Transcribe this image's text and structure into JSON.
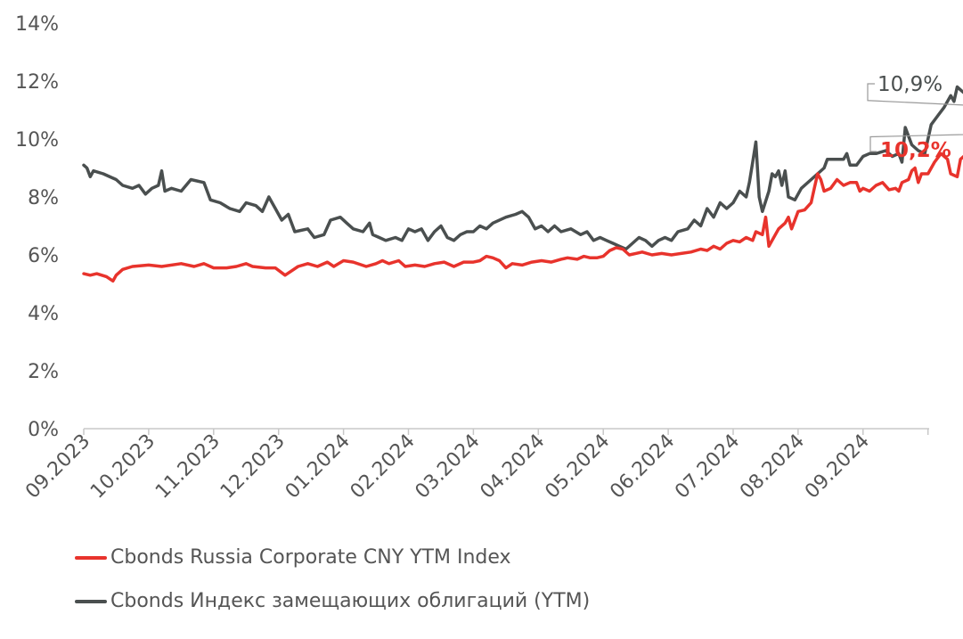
{
  "chart_data": {
    "type": "line",
    "title": "",
    "xlabel": "",
    "ylabel": "",
    "ylim": [
      0,
      14
    ],
    "y_ticks": [
      "0%",
      "2%",
      "4%",
      "6%",
      "8%",
      "10%",
      "12%",
      "14%"
    ],
    "y_tick_values": [
      0,
      2,
      4,
      6,
      8,
      10,
      12,
      14
    ],
    "x_ticks": [
      "09.2023",
      "10.2023",
      "11.2023",
      "12.2023",
      "01.2024",
      "02.2024",
      "03.2024",
      "04.2024",
      "05.2024",
      "06.2024",
      "07.2024",
      "08.2024",
      "09.2024"
    ],
    "x_range_months": [
      0,
      13
    ],
    "grid": false,
    "legend_position": "bottom-left",
    "series": [
      {
        "name": "Cbonds Russia Corporate CNY YTM Index",
        "color": "#e8332c",
        "end_label": "10,2%",
        "points": [
          [
            0.0,
            5.35
          ],
          [
            0.1,
            5.3
          ],
          [
            0.2,
            5.35
          ],
          [
            0.35,
            5.25
          ],
          [
            0.45,
            5.1
          ],
          [
            0.5,
            5.3
          ],
          [
            0.6,
            5.5
          ],
          [
            0.75,
            5.6
          ],
          [
            1.0,
            5.65
          ],
          [
            1.2,
            5.6
          ],
          [
            1.5,
            5.7
          ],
          [
            1.7,
            5.6
          ],
          [
            1.85,
            5.7
          ],
          [
            2.0,
            5.55
          ],
          [
            2.2,
            5.55
          ],
          [
            2.35,
            5.6
          ],
          [
            2.5,
            5.7
          ],
          [
            2.6,
            5.6
          ],
          [
            2.8,
            5.55
          ],
          [
            2.95,
            5.55
          ],
          [
            3.1,
            5.3
          ],
          [
            3.2,
            5.45
          ],
          [
            3.3,
            5.6
          ],
          [
            3.45,
            5.7
          ],
          [
            3.6,
            5.6
          ],
          [
            3.75,
            5.75
          ],
          [
            3.85,
            5.6
          ],
          [
            4.0,
            5.8
          ],
          [
            4.15,
            5.75
          ],
          [
            4.35,
            5.6
          ],
          [
            4.5,
            5.7
          ],
          [
            4.6,
            5.8
          ],
          [
            4.7,
            5.7
          ],
          [
            4.85,
            5.8
          ],
          [
            4.95,
            5.6
          ],
          [
            5.1,
            5.65
          ],
          [
            5.25,
            5.6
          ],
          [
            5.4,
            5.7
          ],
          [
            5.55,
            5.75
          ],
          [
            5.7,
            5.6
          ],
          [
            5.85,
            5.75
          ],
          [
            6.0,
            5.75
          ],
          [
            6.1,
            5.8
          ],
          [
            6.2,
            5.95
          ],
          [
            6.3,
            5.9
          ],
          [
            6.4,
            5.8
          ],
          [
            6.5,
            5.55
          ],
          [
            6.6,
            5.7
          ],
          [
            6.75,
            5.65
          ],
          [
            6.9,
            5.75
          ],
          [
            7.05,
            5.8
          ],
          [
            7.2,
            5.75
          ],
          [
            7.35,
            5.85
          ],
          [
            7.45,
            5.9
          ],
          [
            7.6,
            5.85
          ],
          [
            7.7,
            5.95
          ],
          [
            7.8,
            5.9
          ],
          [
            7.9,
            5.9
          ],
          [
            8.0,
            5.95
          ],
          [
            8.1,
            6.15
          ],
          [
            8.2,
            6.25
          ],
          [
            8.3,
            6.2
          ],
          [
            8.4,
            6.0
          ],
          [
            8.5,
            6.05
          ],
          [
            8.6,
            6.1
          ],
          [
            8.75,
            6.0
          ],
          [
            8.9,
            6.05
          ],
          [
            9.05,
            6.0
          ],
          [
            9.2,
            6.05
          ],
          [
            9.35,
            6.1
          ],
          [
            9.5,
            6.2
          ],
          [
            9.6,
            6.15
          ],
          [
            9.7,
            6.3
          ],
          [
            9.8,
            6.2
          ],
          [
            9.9,
            6.4
          ],
          [
            10.0,
            6.5
          ],
          [
            10.1,
            6.45
          ],
          [
            10.2,
            6.6
          ],
          [
            10.3,
            6.5
          ],
          [
            10.35,
            6.8
          ],
          [
            10.45,
            6.7
          ],
          [
            10.5,
            7.3
          ],
          [
            10.55,
            6.3
          ],
          [
            10.6,
            6.5
          ],
          [
            10.7,
            6.9
          ],
          [
            10.8,
            7.1
          ],
          [
            10.85,
            7.3
          ],
          [
            10.9,
            6.9
          ],
          [
            10.95,
            7.2
          ],
          [
            11.0,
            7.5
          ],
          [
            11.1,
            7.55
          ],
          [
            11.2,
            7.8
          ],
          [
            11.25,
            8.3
          ],
          [
            11.3,
            8.8
          ],
          [
            11.35,
            8.6
          ],
          [
            11.4,
            8.2
          ],
          [
            11.5,
            8.3
          ],
          [
            11.6,
            8.6
          ],
          [
            11.7,
            8.4
          ],
          [
            11.8,
            8.5
          ],
          [
            11.9,
            8.5
          ],
          [
            11.95,
            8.2
          ],
          [
            12.0,
            8.3
          ],
          [
            12.1,
            8.2
          ],
          [
            12.2,
            8.4
          ],
          [
            12.3,
            8.5
          ],
          [
            12.4,
            8.25
          ],
          [
            12.5,
            8.3
          ],
          [
            12.55,
            8.2
          ],
          [
            12.6,
            8.5
          ],
          [
            12.7,
            8.6
          ],
          [
            12.75,
            8.9
          ],
          [
            12.8,
            9.0
          ],
          [
            12.85,
            8.5
          ],
          [
            12.9,
            8.8
          ],
          [
            13.0,
            8.8
          ],
          [
            13.1,
            9.2
          ],
          [
            13.2,
            9.5
          ],
          [
            13.3,
            9.3
          ],
          [
            13.35,
            8.8
          ],
          [
            13.45,
            8.7
          ],
          [
            13.5,
            9.3
          ],
          [
            13.6,
            9.5
          ],
          [
            13.7,
            9.8
          ],
          [
            13.75,
            10.4
          ],
          [
            13.8,
            10.0
          ],
          [
            13.9,
            9.9
          ],
          [
            14.0,
            10.2
          ],
          [
            14.1,
            10.0
          ],
          [
            14.15,
            10.5
          ],
          [
            14.2,
            10.3
          ],
          [
            14.25,
            10.1
          ],
          [
            14.3,
            10.2
          ]
        ]
      },
      {
        "name": "Cbonds Индекс замещающих облигаций (YTM)",
        "color": "#4a4f4f",
        "end_label": "10,9%",
        "points": [
          [
            0.0,
            9.1
          ],
          [
            0.05,
            9.0
          ],
          [
            0.1,
            8.7
          ],
          [
            0.15,
            8.9
          ],
          [
            0.3,
            8.8
          ],
          [
            0.5,
            8.6
          ],
          [
            0.6,
            8.4
          ],
          [
            0.75,
            8.3
          ],
          [
            0.85,
            8.4
          ],
          [
            0.95,
            8.1
          ],
          [
            1.05,
            8.3
          ],
          [
            1.15,
            8.4
          ],
          [
            1.2,
            8.9
          ],
          [
            1.25,
            8.2
          ],
          [
            1.35,
            8.3
          ],
          [
            1.5,
            8.2
          ],
          [
            1.65,
            8.6
          ],
          [
            1.85,
            8.5
          ],
          [
            1.95,
            7.9
          ],
          [
            2.1,
            7.8
          ],
          [
            2.25,
            7.6
          ],
          [
            2.4,
            7.5
          ],
          [
            2.5,
            7.8
          ],
          [
            2.65,
            7.7
          ],
          [
            2.75,
            7.5
          ],
          [
            2.85,
            8.0
          ],
          [
            2.95,
            7.6
          ],
          [
            3.05,
            7.2
          ],
          [
            3.15,
            7.4
          ],
          [
            3.25,
            6.8
          ],
          [
            3.45,
            6.9
          ],
          [
            3.55,
            6.6
          ],
          [
            3.7,
            6.7
          ],
          [
            3.8,
            7.2
          ],
          [
            3.95,
            7.3
          ],
          [
            4.05,
            7.1
          ],
          [
            4.15,
            6.9
          ],
          [
            4.3,
            6.8
          ],
          [
            4.4,
            7.1
          ],
          [
            4.45,
            6.7
          ],
          [
            4.55,
            6.6
          ],
          [
            4.65,
            6.5
          ],
          [
            4.8,
            6.6
          ],
          [
            4.9,
            6.5
          ],
          [
            5.0,
            6.9
          ],
          [
            5.1,
            6.8
          ],
          [
            5.2,
            6.9
          ],
          [
            5.3,
            6.5
          ],
          [
            5.4,
            6.8
          ],
          [
            5.5,
            7.0
          ],
          [
            5.6,
            6.6
          ],
          [
            5.7,
            6.5
          ],
          [
            5.8,
            6.7
          ],
          [
            5.9,
            6.8
          ],
          [
            6.0,
            6.8
          ],
          [
            6.1,
            7.0
          ],
          [
            6.2,
            6.9
          ],
          [
            6.3,
            7.1
          ],
          [
            6.5,
            7.3
          ],
          [
            6.65,
            7.4
          ],
          [
            6.75,
            7.5
          ],
          [
            6.85,
            7.3
          ],
          [
            6.95,
            6.9
          ],
          [
            7.05,
            7.0
          ],
          [
            7.15,
            6.8
          ],
          [
            7.25,
            7.0
          ],
          [
            7.35,
            6.8
          ],
          [
            7.5,
            6.9
          ],
          [
            7.65,
            6.7
          ],
          [
            7.75,
            6.8
          ],
          [
            7.85,
            6.5
          ],
          [
            7.95,
            6.6
          ],
          [
            8.05,
            6.5
          ],
          [
            8.15,
            6.4
          ],
          [
            8.25,
            6.3
          ],
          [
            8.35,
            6.2
          ],
          [
            8.45,
            6.4
          ],
          [
            8.55,
            6.6
          ],
          [
            8.65,
            6.5
          ],
          [
            8.75,
            6.3
          ],
          [
            8.85,
            6.5
          ],
          [
            8.95,
            6.6
          ],
          [
            9.05,
            6.5
          ],
          [
            9.15,
            6.8
          ],
          [
            9.3,
            6.9
          ],
          [
            9.4,
            7.2
          ],
          [
            9.5,
            7.0
          ],
          [
            9.6,
            7.6
          ],
          [
            9.7,
            7.3
          ],
          [
            9.8,
            7.8
          ],
          [
            9.9,
            7.6
          ],
          [
            10.0,
            7.8
          ],
          [
            10.1,
            8.2
          ],
          [
            10.2,
            8.0
          ],
          [
            10.25,
            8.5
          ],
          [
            10.3,
            9.2
          ],
          [
            10.35,
            9.9
          ],
          [
            10.4,
            8.0
          ],
          [
            10.45,
            7.5
          ],
          [
            10.55,
            8.2
          ],
          [
            10.6,
            8.8
          ],
          [
            10.65,
            8.7
          ],
          [
            10.7,
            8.9
          ],
          [
            10.75,
            8.4
          ],
          [
            10.8,
            8.9
          ],
          [
            10.85,
            8.0
          ],
          [
            10.95,
            7.9
          ],
          [
            11.05,
            8.3
          ],
          [
            11.2,
            8.6
          ],
          [
            11.3,
            8.8
          ],
          [
            11.4,
            9.0
          ],
          [
            11.45,
            9.3
          ],
          [
            11.6,
            9.3
          ],
          [
            11.7,
            9.3
          ],
          [
            11.75,
            9.5
          ],
          [
            11.8,
            9.1
          ],
          [
            11.9,
            9.1
          ],
          [
            12.0,
            9.4
          ],
          [
            12.1,
            9.5
          ],
          [
            12.2,
            9.5
          ],
          [
            12.35,
            9.6
          ],
          [
            12.45,
            9.4
          ],
          [
            12.55,
            9.5
          ],
          [
            12.6,
            9.2
          ],
          [
            12.65,
            10.4
          ],
          [
            12.75,
            9.8
          ],
          [
            12.85,
            9.6
          ],
          [
            12.95,
            9.5
          ],
          [
            13.05,
            10.5
          ],
          [
            13.15,
            10.8
          ],
          [
            13.25,
            11.1
          ],
          [
            13.35,
            11.5
          ],
          [
            13.4,
            11.3
          ],
          [
            13.45,
            11.8
          ],
          [
            13.5,
            11.7
          ],
          [
            13.55,
            11.6
          ],
          [
            13.6,
            11.9
          ],
          [
            13.65,
            12.2
          ],
          [
            13.7,
            11.5
          ],
          [
            13.8,
            11.4
          ],
          [
            13.9,
            11.2
          ],
          [
            14.0,
            11.1
          ],
          [
            14.05,
            11.3
          ],
          [
            14.1,
            11.3
          ],
          [
            14.15,
            11.2
          ],
          [
            14.2,
            11.0
          ],
          [
            14.25,
            10.95
          ],
          [
            14.3,
            10.9
          ]
        ]
      }
    ]
  }
}
